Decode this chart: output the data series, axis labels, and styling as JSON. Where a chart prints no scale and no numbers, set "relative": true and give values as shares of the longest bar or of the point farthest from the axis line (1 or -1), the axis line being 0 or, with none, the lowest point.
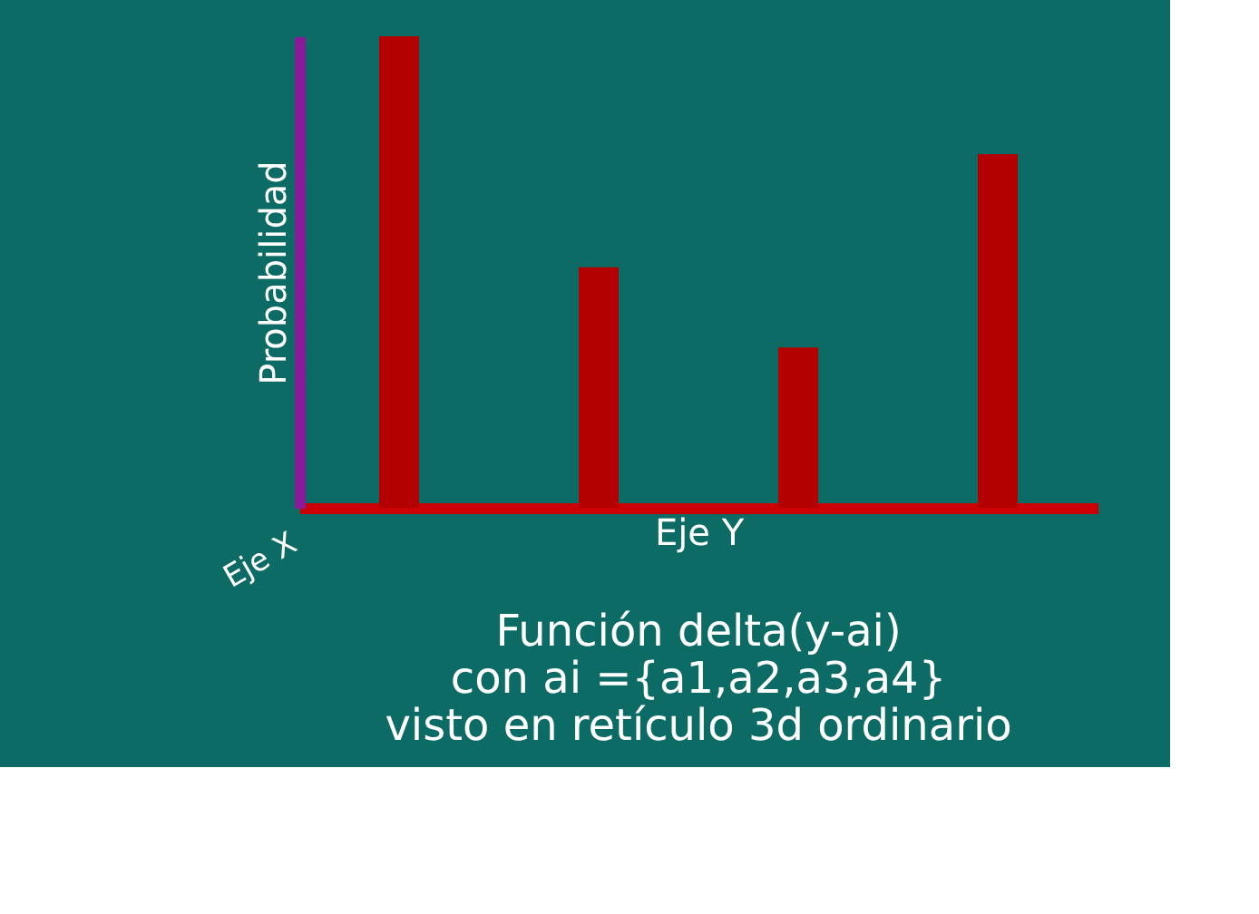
{
  "chart_data": {
    "type": "bar",
    "relative": true,
    "title": "Función delta(y-ai)",
    "subtitle": "con ai ={a1,a2,a3,a4}",
    "annotations": [
      "visto en retículo 3d ordinario",
      "Eje X"
    ],
    "xlabel": "Eje Y",
    "ylabel": "Probabilidad",
    "categories": [
      null,
      null,
      null,
      null
    ],
    "values": [
      1,
      0.51,
      0.34,
      0.75
    ],
    "color": "#b30000",
    "tick_labels": false,
    "grid": false
  }
}
